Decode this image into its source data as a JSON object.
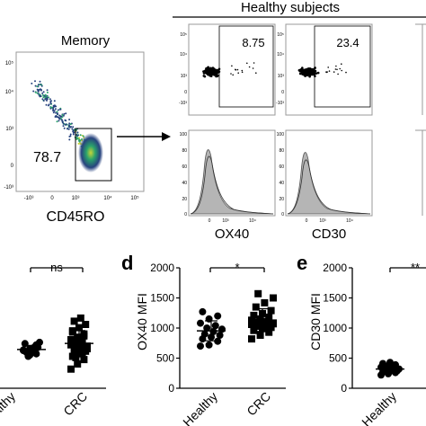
{
  "header": {
    "title": "Healthy subjects"
  },
  "memory_plot": {
    "title": "Memory",
    "gate_value": "78.7",
    "xlabel": "CD45RO",
    "x_ticks": [
      "-10³",
      "0",
      "10³",
      "10⁴",
      "10⁵"
    ],
    "y_ticks": [
      "10⁵",
      "10⁴",
      "10³",
      "0",
      "-10³"
    ]
  },
  "dot_plots": [
    {
      "value": "8.75"
    },
    {
      "value": "23.4"
    }
  ],
  "histograms": [
    {
      "label": "OX40"
    },
    {
      "label": "CD30"
    }
  ],
  "scatter_y_ticks": [
    "10⁵",
    "10⁴",
    "10³",
    "0",
    "-10³"
  ],
  "histogram_y_ticks": [
    "100",
    "80",
    "60",
    "40",
    "20",
    "0"
  ],
  "histogram_x_ticks": [
    "0",
    "10³",
    "10⁴"
  ],
  "panels": {
    "c_partial": {
      "significance": "ns",
      "categories": [
        "Healthy",
        "CRC"
      ]
    },
    "d": {
      "letter": "d",
      "ylabel": "OX40 MFI",
      "y_ticks": [
        "2000",
        "1500",
        "1000",
        "500",
        "0"
      ],
      "significance": "*",
      "categories": [
        "Healthy",
        "CRC"
      ]
    },
    "e": {
      "letter": "e",
      "ylabel": "CD30 MFI",
      "y_ticks": [
        "2000",
        "1500",
        "1000",
        "500",
        "0"
      ],
      "significance": "**",
      "categories": [
        "Healthy"
      ]
    }
  },
  "chart_data": [
    {
      "type": "scatter",
      "panel": "partial-left",
      "categories": [
        "Healthy",
        "CRC"
      ],
      "series": [
        {
          "values": [
            600,
            520,
            680,
            700,
            580,
            640,
            560,
            610,
            720,
            500,
            650,
            590,
            620,
            540
          ]
        },
        {
          "values": [
            300,
            380,
            450,
            500,
            540,
            580,
            610,
            640,
            660,
            700,
            720,
            760,
            800,
            850,
            900,
            950,
            1000,
            1050,
            1100,
            620,
            480,
            560,
            680,
            740,
            820,
            880
          ]
        }
      ],
      "significance": "ns"
    },
    {
      "type": "scatter",
      "panel": "d",
      "categories": [
        "Healthy",
        "CRC"
      ],
      "ylabel": "OX40 MFI",
      "ylim": [
        0,
        2000
      ],
      "series": [
        {
          "values": [
            700,
            720,
            780,
            820,
            850,
            880,
            900,
            940,
            980,
            1000,
            1040,
            1080,
            1150,
            1200,
            1270
          ]
        },
        {
          "values": [
            820,
            880,
            930,
            960,
            990,
            1010,
            1030,
            1050,
            1070,
            1090,
            1110,
            1130,
            1150,
            1180,
            1210,
            1240,
            1290,
            1350,
            1420,
            1500,
            1570,
            1000,
            1060
          ]
        }
      ],
      "means": [
        940,
        1120
      ],
      "significance": "*"
    },
    {
      "type": "scatter",
      "panel": "e",
      "categories": [
        "Healthy"
      ],
      "ylabel": "CD30 MFI",
      "ylim": [
        0,
        2000
      ],
      "series": [
        {
          "values": [
            220,
            240,
            260,
            270,
            280,
            290,
            300,
            310,
            320,
            330,
            340,
            350,
            370,
            390,
            410,
            430
          ]
        }
      ],
      "means": [
        320
      ],
      "significance": "**"
    }
  ]
}
